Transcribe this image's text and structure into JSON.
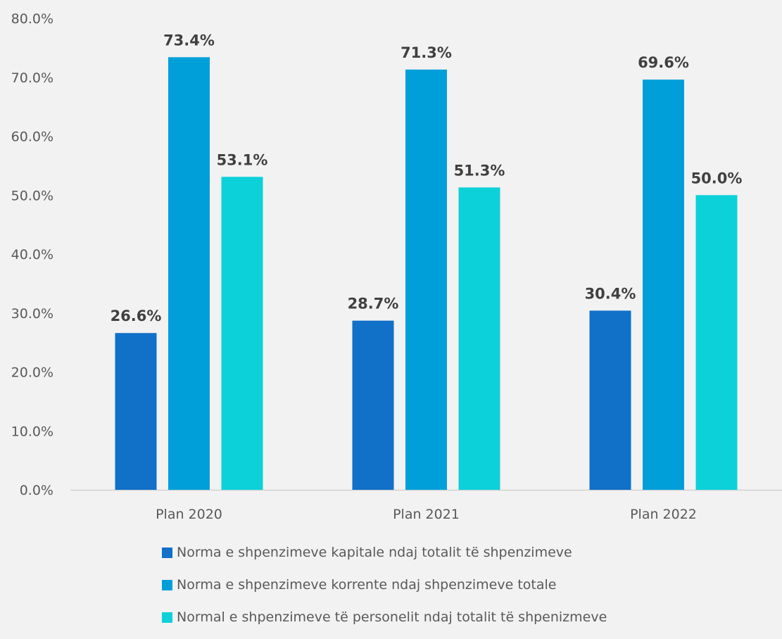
{
  "chart_data": {
    "type": "bar",
    "categories": [
      "Plan 2020",
      "Plan 2021",
      "Plan 2022"
    ],
    "series": [
      {
        "name": "Norma e shpenzimeve kapitale ndaj totalit të shpenzimeve",
        "values": [
          26.6,
          28.7,
          30.4
        ],
        "labels": [
          "26.6%",
          "28.7%",
          "30.4%"
        ],
        "color": "#1170c8"
      },
      {
        "name": "Norma e shpenzimeve korrente ndaj shpenzimeve totale",
        "values": [
          73.4,
          71.3,
          69.6
        ],
        "labels": [
          "73.4%",
          "71.3%",
          "69.6%"
        ],
        "color": "#009fda"
      },
      {
        "name": "Normal e shpenzimeve të personelit ndaj totalit të shpenizmeve",
        "values": [
          53.1,
          51.3,
          50.0
        ],
        "labels": [
          "53.1%",
          "51.3%",
          "50.0%"
        ],
        "color": "#0dd1d9"
      }
    ],
    "ylim": [
      0,
      80
    ],
    "yticks": [
      "0.0%",
      "10.0%",
      "20.0%",
      "30.0%",
      "40.0%",
      "50.0%",
      "60.0%",
      "70.0%",
      "80.0%"
    ],
    "legend_position": "bottom",
    "grid": false,
    "background": "#f2f2f2"
  }
}
